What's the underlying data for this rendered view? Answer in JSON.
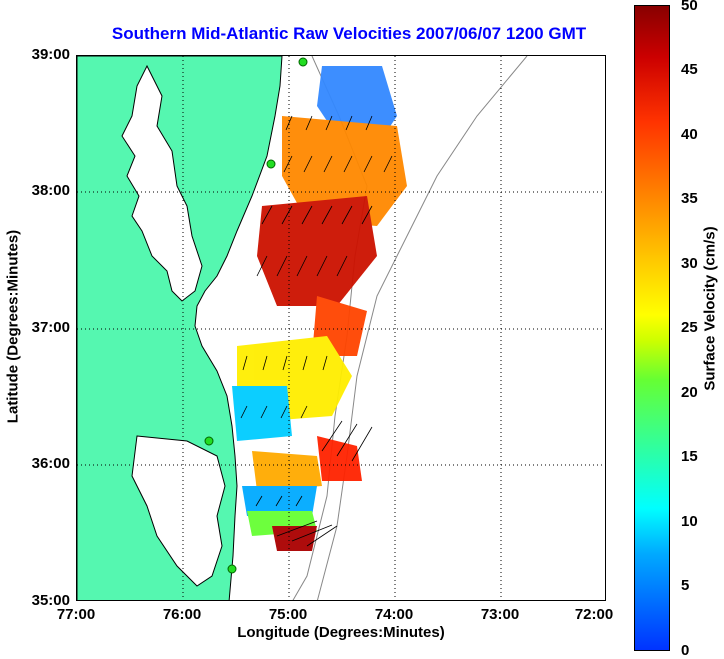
{
  "title": "Southern Mid-Atlantic Raw Velocities 2007/06/07 1200 GMT",
  "xlabel": "Longitude (Degrees:Minutes)",
  "ylabel": "Latitude (Degrees:Minutes)",
  "colorbar_label": "Surface Velocity (cm/s)",
  "x_ticks": [
    "77:00",
    "76:00",
    "75:00",
    "74:00",
    "73:00",
    "72:00"
  ],
  "y_ticks": [
    "39:00",
    "38:00",
    "37:00",
    "36:00",
    "35:00"
  ],
  "colorbar_ticks": [
    "50",
    "45",
    "40",
    "35",
    "30",
    "25",
    "20",
    "15",
    "10",
    "5",
    "0"
  ],
  "colors": {
    "land": "#55f7b0",
    "title": "#0000ff",
    "station": "#22dd22"
  },
  "chart_data": {
    "type": "heatmap",
    "title": "Southern Mid-Atlantic Raw Velocities 2007/06/07 1200 GMT",
    "xlabel": "Longitude (Degrees:Minutes)",
    "ylabel": "Latitude (Degrees:Minutes)",
    "colorbar_label": "Surface Velocity (cm/s)",
    "colorbar_range": [
      0,
      50
    ],
    "x_range_deg_west": [
      77,
      72
    ],
    "y_range_deg_north": [
      35,
      39
    ],
    "grid": true
  }
}
